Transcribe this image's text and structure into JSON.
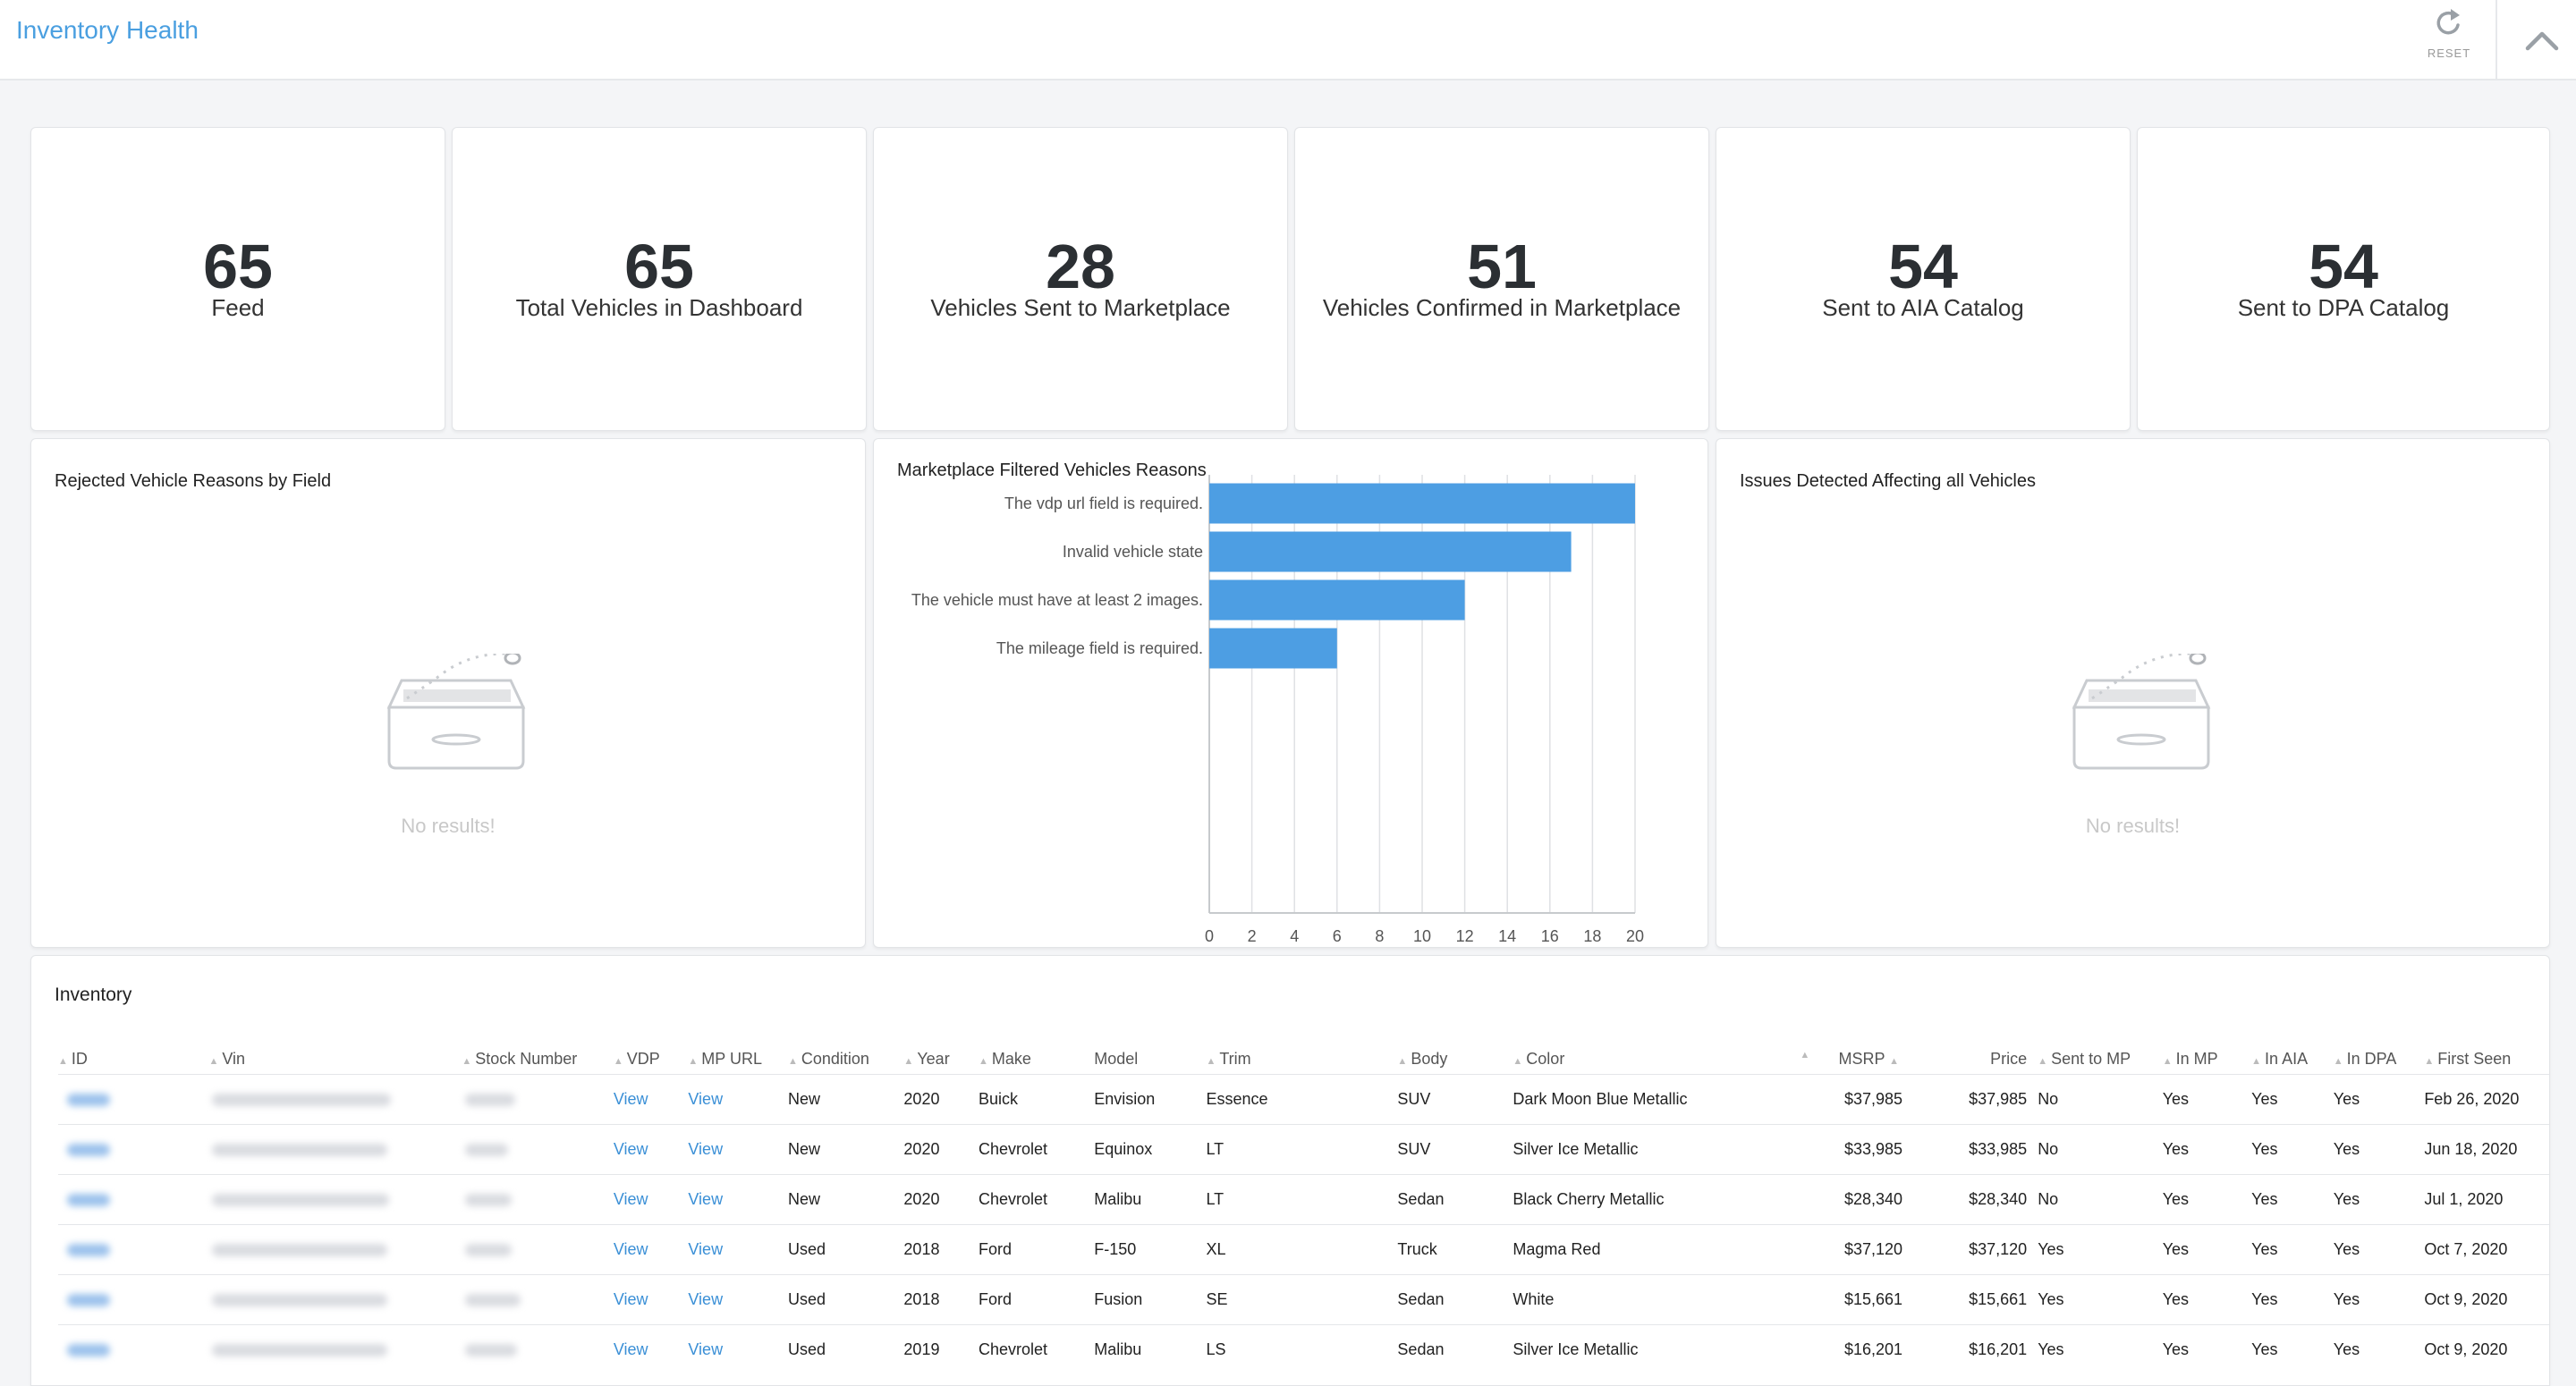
{
  "header": {
    "title": "Inventory Health",
    "reset_label": "RESET"
  },
  "kpis": [
    {
      "value": "65",
      "label": "Feed"
    },
    {
      "value": "65",
      "label": "Total Vehicles in Dashboard"
    },
    {
      "value": "28",
      "label": "Vehicles Sent to Marketplace"
    },
    {
      "value": "51",
      "label": "Vehicles Confirmed in Marketplace"
    },
    {
      "value": "54",
      "label": "Sent to AIA Catalog"
    },
    {
      "value": "54",
      "label": "Sent to DPA Catalog"
    }
  ],
  "panels": {
    "rejected": {
      "title": "Rejected Vehicle Reasons by Field",
      "empty_text": "No results!"
    },
    "issues": {
      "title": "Issues Detected Affecting all Vehicles",
      "empty_text": "No results!"
    }
  },
  "chart_data": {
    "type": "bar",
    "orientation": "horizontal",
    "title": "Marketplace Filtered Vehicles Reasons",
    "categories": [
      "The vdp url field is required.",
      "Invalid vehicle state",
      "The vehicle must have at least 2 images.",
      "The mileage field is required."
    ],
    "values": [
      20,
      17,
      12,
      6
    ],
    "xlim": [
      0,
      20
    ],
    "xticks": [
      "0",
      "2",
      "4",
      "6",
      "8",
      "10",
      "12",
      "14",
      "16",
      "18",
      "20"
    ],
    "grid": true,
    "bar_color": "#4d9ee3"
  },
  "inventory": {
    "title": "Inventory",
    "columns": [
      "ID",
      "Vin",
      "Stock Number",
      "VDP",
      "MP URL",
      "Condition",
      "Year",
      "Make",
      "Model",
      "Trim",
      "Body",
      "Color",
      "MSRP",
      "Price",
      "Sent to MP",
      "In MP",
      "In AIA",
      "In DPA",
      "First Seen"
    ],
    "view_label": "View",
    "rows": [
      [
        "New",
        "2020",
        "Buick",
        "Envision",
        "Essence",
        "SUV",
        "Dark Moon Blue Metallic",
        "$37,985",
        "$37,985",
        "No",
        "Yes",
        "Yes",
        "Yes",
        "Feb 26, 2020"
      ],
      [
        "New",
        "2020",
        "Chevrolet",
        "Equinox",
        "LT",
        "SUV",
        "Silver Ice Metallic",
        "$33,985",
        "$33,985",
        "No",
        "Yes",
        "Yes",
        "Yes",
        "Jun 18, 2020"
      ],
      [
        "New",
        "2020",
        "Chevrolet",
        "Malibu",
        "LT",
        "Sedan",
        "Black Cherry Metallic",
        "$28,340",
        "$28,340",
        "No",
        "Yes",
        "Yes",
        "Yes",
        "Jul 1, 2020"
      ],
      [
        "Used",
        "2018",
        "Ford",
        "F-150",
        "XL",
        "Truck",
        "Magma Red",
        "$37,120",
        "$37,120",
        "Yes",
        "Yes",
        "Yes",
        "Yes",
        "Oct 7, 2020"
      ],
      [
        "Used",
        "2018",
        "Ford",
        "Fusion",
        "SE",
        "Sedan",
        "White",
        "$15,661",
        "$15,661",
        "Yes",
        "Yes",
        "Yes",
        "Yes",
        "Oct 9, 2020"
      ],
      [
        "Used",
        "2019",
        "Chevrolet",
        "Malibu",
        "LS",
        "Sedan",
        "Silver Ice Metallic",
        "$16,201",
        "$16,201",
        "Yes",
        "Yes",
        "Yes",
        "Yes",
        "Oct 9, 2020"
      ]
    ]
  },
  "colors": {
    "accent": "#4a9fe0",
    "link": "#3a8fd6",
    "bar": "#4d9ee3"
  }
}
